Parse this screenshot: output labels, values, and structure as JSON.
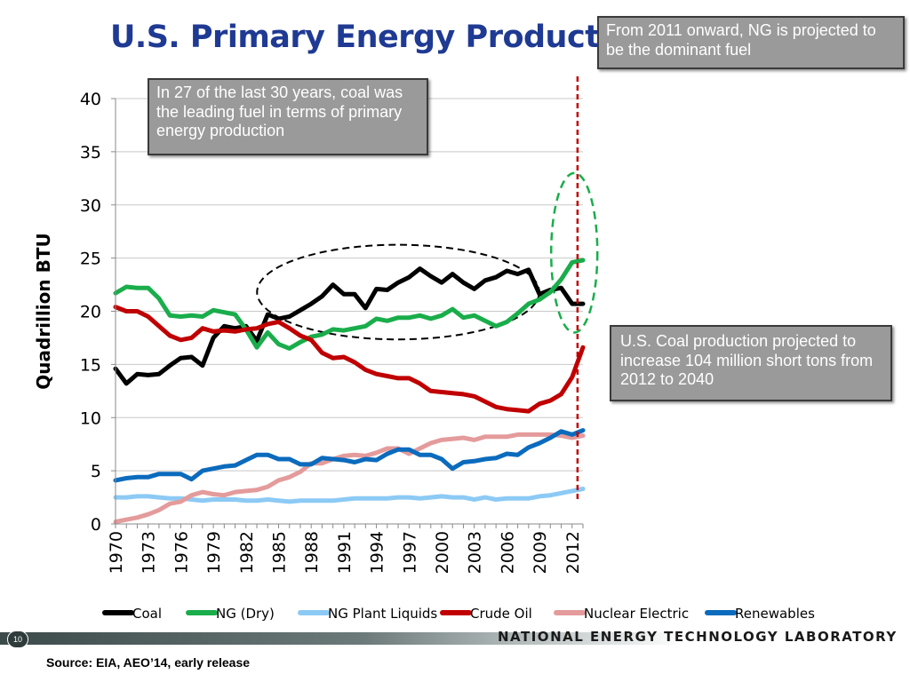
{
  "slide": {
    "title": "U.S. Primary Energy Production",
    "page_number": "10",
    "organization": "NATIONAL ENERGY TECHNOLOGY LABORATORY",
    "source": "Source: EIA, AEO’14, early release"
  },
  "callouts": {
    "coal_leading": "In 27 of the last 30 years, coal was the leading fuel in terms of primary energy production",
    "ng_dominant": "From 2011 onward, NG is projected to be the dominant fuel",
    "coal_projection": "U.S. Coal production projected to increase 104 million short tons from 2012 to 2040"
  },
  "colors": {
    "coal": "#000000",
    "ng_dry": "#1aad4b",
    "ng_plant_liquids": "#8ccaf5",
    "crude_oil": "#c00000",
    "nuclear": "#e49b9b",
    "renewables": "#0b6bbd",
    "title": "#1f3a93",
    "divider": "#c00000"
  },
  "chart_data": {
    "type": "line",
    "title": "",
    "xlabel": "",
    "ylabel": "Quadrillion BTU",
    "xlim": [
      1970,
      2013
    ],
    "ylim": [
      0,
      40
    ],
    "x_ticks": [
      "1970",
      "1973",
      "1976",
      "1979",
      "1982",
      "1985",
      "1988",
      "1991",
      "1994",
      "1997",
      "2000",
      "2003",
      "2006",
      "2009",
      "2012"
    ],
    "y_ticks": [
      "0",
      "5",
      "10",
      "15",
      "20",
      "25",
      "30",
      "35",
      "40"
    ],
    "grid": true,
    "legend_position": "bottom",
    "x": [
      1970,
      1971,
      1972,
      1973,
      1974,
      1975,
      1976,
      1977,
      1978,
      1979,
      1980,
      1981,
      1982,
      1983,
      1984,
      1985,
      1986,
      1987,
      1988,
      1989,
      1990,
      1991,
      1992,
      1993,
      1994,
      1995,
      1996,
      1997,
      1998,
      1999,
      2000,
      2001,
      2002,
      2003,
      2004,
      2005,
      2006,
      2007,
      2008,
      2009,
      2010,
      2011,
      2012,
      2013
    ],
    "series": [
      {
        "name": "Coal",
        "color": "#000000",
        "values": [
          14.6,
          13.2,
          14.1,
          14.0,
          14.1,
          14.9,
          15.6,
          15.7,
          14.9,
          17.5,
          18.6,
          18.4,
          18.6,
          17.2,
          19.7,
          19.3,
          19.5,
          20.1,
          20.7,
          21.4,
          22.5,
          21.6,
          21.6,
          20.3,
          22.1,
          22.0,
          22.7,
          23.2,
          24.0,
          23.3,
          22.7,
          23.5,
          22.7,
          22.1,
          22.9,
          23.2,
          23.8,
          23.5,
          23.9,
          21.6,
          22.0,
          22.2,
          20.7,
          20.7
        ]
      },
      {
        "name": "NG (Dry)",
        "color": "#1aad4b",
        "values": [
          21.7,
          22.3,
          22.2,
          22.2,
          21.2,
          19.6,
          19.5,
          19.6,
          19.5,
          20.1,
          19.9,
          19.7,
          18.3,
          16.6,
          18.0,
          16.9,
          16.5,
          17.1,
          17.6,
          17.8,
          18.3,
          18.2,
          18.4,
          18.6,
          19.3,
          19.1,
          19.4,
          19.4,
          19.6,
          19.3,
          19.6,
          20.2,
          19.4,
          19.6,
          19.1,
          18.6,
          19.0,
          19.8,
          20.7,
          21.1,
          21.8,
          23.0,
          24.6,
          24.8
        ]
      },
      {
        "name": "NG Plant Liquids",
        "color": "#8ccaf5",
        "values": [
          2.5,
          2.5,
          2.6,
          2.6,
          2.5,
          2.4,
          2.4,
          2.3,
          2.2,
          2.3,
          2.3,
          2.3,
          2.2,
          2.2,
          2.3,
          2.2,
          2.1,
          2.2,
          2.2,
          2.2,
          2.2,
          2.3,
          2.4,
          2.4,
          2.4,
          2.4,
          2.5,
          2.5,
          2.4,
          2.5,
          2.6,
          2.5,
          2.5,
          2.3,
          2.5,
          2.3,
          2.4,
          2.4,
          2.4,
          2.6,
          2.7,
          2.9,
          3.1,
          3.3
        ]
      },
      {
        "name": "Crude Oil",
        "color": "#c00000",
        "values": [
          20.4,
          20.0,
          20.0,
          19.5,
          18.6,
          17.7,
          17.3,
          17.5,
          18.4,
          18.1,
          18.2,
          18.1,
          18.3,
          18.4,
          18.8,
          19.0,
          18.4,
          17.7,
          17.3,
          16.1,
          15.6,
          15.7,
          15.2,
          14.5,
          14.1,
          13.9,
          13.7,
          13.7,
          13.2,
          12.5,
          12.4,
          12.3,
          12.2,
          12.0,
          11.5,
          11.0,
          10.8,
          10.7,
          10.6,
          11.3,
          11.6,
          12.2,
          13.8,
          16.6
        ]
      },
      {
        "name": "Nuclear Electric",
        "color": "#e49b9b",
        "values": [
          0.2,
          0.4,
          0.6,
          0.9,
          1.3,
          1.9,
          2.1,
          2.7,
          3.0,
          2.8,
          2.7,
          3.0,
          3.1,
          3.2,
          3.5,
          4.1,
          4.4,
          4.9,
          5.7,
          5.7,
          6.1,
          6.4,
          6.5,
          6.4,
          6.7,
          7.1,
          7.1,
          6.6,
          7.1,
          7.6,
          7.9,
          8.0,
          8.1,
          7.9,
          8.2,
          8.2,
          8.2,
          8.4,
          8.4,
          8.4,
          8.4,
          8.3,
          8.1,
          8.3
        ]
      },
      {
        "name": "Renewables",
        "color": "#0b6bbd",
        "values": [
          4.1,
          4.3,
          4.4,
          4.4,
          4.7,
          4.7,
          4.7,
          4.2,
          5.0,
          5.2,
          5.4,
          5.5,
          6.0,
          6.5,
          6.5,
          6.1,
          6.1,
          5.6,
          5.6,
          6.2,
          6.1,
          6.0,
          5.8,
          6.1,
          6.0,
          6.6,
          7.0,
          7.0,
          6.5,
          6.5,
          6.1,
          5.2,
          5.8,
          5.9,
          6.1,
          6.2,
          6.6,
          6.5,
          7.2,
          7.6,
          8.1,
          8.7,
          8.4,
          8.8
        ]
      }
    ],
    "annotations": {
      "projection_divider_year": 2012.5,
      "coal_highlight_ellipse_years": [
        1984,
        2008
      ]
    }
  }
}
